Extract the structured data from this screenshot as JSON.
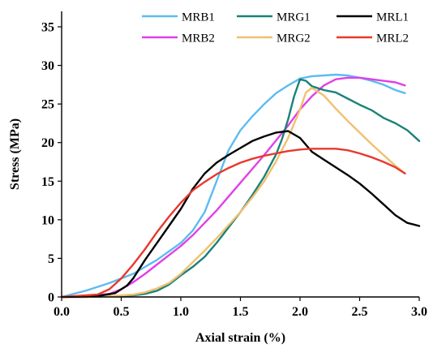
{
  "chart_data": {
    "type": "line",
    "title": "",
    "xlabel": "Axial strain (%)",
    "ylabel": "Stress (MPa)",
    "xlim": [
      0,
      3
    ],
    "ylim": [
      0,
      37
    ],
    "x_ticks": [
      "0.0",
      "0.5",
      "1.0",
      "1.5",
      "2.0",
      "2.5",
      "3.0"
    ],
    "x_tick_values": [
      0,
      0.5,
      1,
      1.5,
      2,
      2.5,
      3
    ],
    "y_ticks": [
      "0",
      "5",
      "10",
      "15",
      "20",
      "25",
      "30",
      "35"
    ],
    "y_tick_values": [
      0,
      5,
      10,
      15,
      20,
      25,
      30,
      35
    ],
    "grid": false,
    "legend_position": "top-right",
    "series": [
      {
        "name": "MRB1",
        "color": "#5bbcf0",
        "points": [
          [
            0,
            0
          ],
          [
            0.2,
            0.8
          ],
          [
            0.4,
            1.8
          ],
          [
            0.6,
            3.0
          ],
          [
            0.8,
            4.8
          ],
          [
            1.0,
            7.0
          ],
          [
            1.1,
            8.6
          ],
          [
            1.2,
            11.0
          ],
          [
            1.3,
            15.0
          ],
          [
            1.4,
            19.0
          ],
          [
            1.5,
            21.6
          ],
          [
            1.6,
            23.4
          ],
          [
            1.7,
            25.0
          ],
          [
            1.8,
            26.4
          ],
          [
            1.9,
            27.4
          ],
          [
            2.0,
            28.3
          ],
          [
            2.1,
            28.6
          ],
          [
            2.2,
            28.7
          ],
          [
            2.3,
            28.8
          ],
          [
            2.4,
            28.7
          ],
          [
            2.5,
            28.4
          ],
          [
            2.6,
            28.0
          ],
          [
            2.7,
            27.5
          ],
          [
            2.8,
            26.8
          ],
          [
            2.88,
            26.4
          ]
        ]
      },
      {
        "name": "MRB2",
        "color": "#e040e8",
        "points": [
          [
            0,
            0
          ],
          [
            0.2,
            0.1
          ],
          [
            0.4,
            0.4
          ],
          [
            0.5,
            1.0
          ],
          [
            0.6,
            1.9
          ],
          [
            0.7,
            3.0
          ],
          [
            0.8,
            4.2
          ],
          [
            0.9,
            5.4
          ],
          [
            1.0,
            6.6
          ],
          [
            1.1,
            8.0
          ],
          [
            1.2,
            9.6
          ],
          [
            1.3,
            11.2
          ],
          [
            1.4,
            13.0
          ],
          [
            1.5,
            14.8
          ],
          [
            1.6,
            16.6
          ],
          [
            1.7,
            18.4
          ],
          [
            1.8,
            20.3
          ],
          [
            1.9,
            22.2
          ],
          [
            2.0,
            24.3
          ],
          [
            2.1,
            26.0
          ],
          [
            2.2,
            27.4
          ],
          [
            2.3,
            28.2
          ],
          [
            2.4,
            28.4
          ],
          [
            2.5,
            28.4
          ],
          [
            2.6,
            28.2
          ],
          [
            2.7,
            28.0
          ],
          [
            2.8,
            27.8
          ],
          [
            2.88,
            27.4
          ]
        ]
      },
      {
        "name": "MRG1",
        "color": "#1a8278",
        "points": [
          [
            0,
            0
          ],
          [
            0.2,
            0.0
          ],
          [
            0.4,
            0.1
          ],
          [
            0.6,
            0.2
          ],
          [
            0.7,
            0.4
          ],
          [
            0.8,
            0.8
          ],
          [
            0.9,
            1.6
          ],
          [
            1.0,
            2.8
          ],
          [
            1.1,
            3.9
          ],
          [
            1.2,
            5.2
          ],
          [
            1.3,
            7.0
          ],
          [
            1.4,
            9.0
          ],
          [
            1.5,
            11.0
          ],
          [
            1.6,
            13.2
          ],
          [
            1.7,
            15.6
          ],
          [
            1.8,
            18.5
          ],
          [
            1.85,
            20.5
          ],
          [
            1.9,
            23.0
          ],
          [
            1.95,
            26.0
          ],
          [
            2.0,
            28.2
          ],
          [
            2.05,
            28.0
          ],
          [
            2.1,
            27.3
          ],
          [
            2.2,
            26.8
          ],
          [
            2.3,
            26.5
          ],
          [
            2.4,
            25.7
          ],
          [
            2.5,
            24.9
          ],
          [
            2.6,
            24.2
          ],
          [
            2.7,
            23.2
          ],
          [
            2.8,
            22.5
          ],
          [
            2.9,
            21.6
          ],
          [
            3.0,
            20.2
          ]
        ]
      },
      {
        "name": "MRG2",
        "color": "#f0c070",
        "points": [
          [
            0,
            0
          ],
          [
            0.2,
            0.0
          ],
          [
            0.4,
            0.1
          ],
          [
            0.6,
            0.3
          ],
          [
            0.7,
            0.6
          ],
          [
            0.8,
            1.1
          ],
          [
            0.9,
            1.8
          ],
          [
            1.0,
            3.0
          ],
          [
            1.1,
            4.5
          ],
          [
            1.2,
            6.0
          ],
          [
            1.3,
            7.6
          ],
          [
            1.4,
            9.3
          ],
          [
            1.5,
            11.0
          ],
          [
            1.6,
            12.9
          ],
          [
            1.7,
            15.0
          ],
          [
            1.8,
            17.6
          ],
          [
            1.9,
            20.6
          ],
          [
            2.0,
            24.3
          ],
          [
            2.05,
            26.5
          ],
          [
            2.1,
            27.1
          ],
          [
            2.2,
            26.1
          ],
          [
            2.3,
            24.4
          ],
          [
            2.4,
            22.8
          ],
          [
            2.5,
            21.3
          ],
          [
            2.6,
            19.8
          ],
          [
            2.7,
            18.4
          ],
          [
            2.8,
            17.0
          ],
          [
            2.88,
            16.0
          ]
        ]
      },
      {
        "name": "MRL1",
        "color": "#000000",
        "points": [
          [
            0,
            0
          ],
          [
            0.3,
            0.1
          ],
          [
            0.45,
            0.5
          ],
          [
            0.55,
            1.5
          ],
          [
            0.6,
            2.4
          ],
          [
            0.7,
            4.8
          ],
          [
            0.8,
            7.0
          ],
          [
            0.9,
            9.2
          ],
          [
            1.0,
            11.4
          ],
          [
            1.1,
            14.0
          ],
          [
            1.2,
            16.0
          ],
          [
            1.3,
            17.4
          ],
          [
            1.4,
            18.4
          ],
          [
            1.5,
            19.3
          ],
          [
            1.6,
            20.2
          ],
          [
            1.7,
            20.8
          ],
          [
            1.8,
            21.3
          ],
          [
            1.9,
            21.5
          ],
          [
            2.0,
            20.6
          ],
          [
            2.1,
            18.8
          ],
          [
            2.2,
            17.8
          ],
          [
            2.3,
            16.8
          ],
          [
            2.4,
            15.8
          ],
          [
            2.5,
            14.7
          ],
          [
            2.6,
            13.4
          ],
          [
            2.7,
            12.0
          ],
          [
            2.8,
            10.6
          ],
          [
            2.9,
            9.6
          ],
          [
            3.0,
            9.2
          ]
        ]
      },
      {
        "name": "MRL2",
        "color": "#e8392e",
        "points": [
          [
            0,
            0
          ],
          [
            0.3,
            0.3
          ],
          [
            0.4,
            1.0
          ],
          [
            0.5,
            2.4
          ],
          [
            0.6,
            4.2
          ],
          [
            0.7,
            6.2
          ],
          [
            0.8,
            8.4
          ],
          [
            0.9,
            10.4
          ],
          [
            1.0,
            12.2
          ],
          [
            1.1,
            13.8
          ],
          [
            1.2,
            14.9
          ],
          [
            1.3,
            15.9
          ],
          [
            1.4,
            16.7
          ],
          [
            1.5,
            17.4
          ],
          [
            1.6,
            17.9
          ],
          [
            1.7,
            18.3
          ],
          [
            1.8,
            18.6
          ],
          [
            1.9,
            18.9
          ],
          [
            2.0,
            19.1
          ],
          [
            2.1,
            19.2
          ],
          [
            2.2,
            19.2
          ],
          [
            2.3,
            19.2
          ],
          [
            2.4,
            19.0
          ],
          [
            2.5,
            18.6
          ],
          [
            2.6,
            18.1
          ],
          [
            2.7,
            17.5
          ],
          [
            2.8,
            16.8
          ],
          [
            2.88,
            16.0
          ]
        ]
      }
    ]
  }
}
